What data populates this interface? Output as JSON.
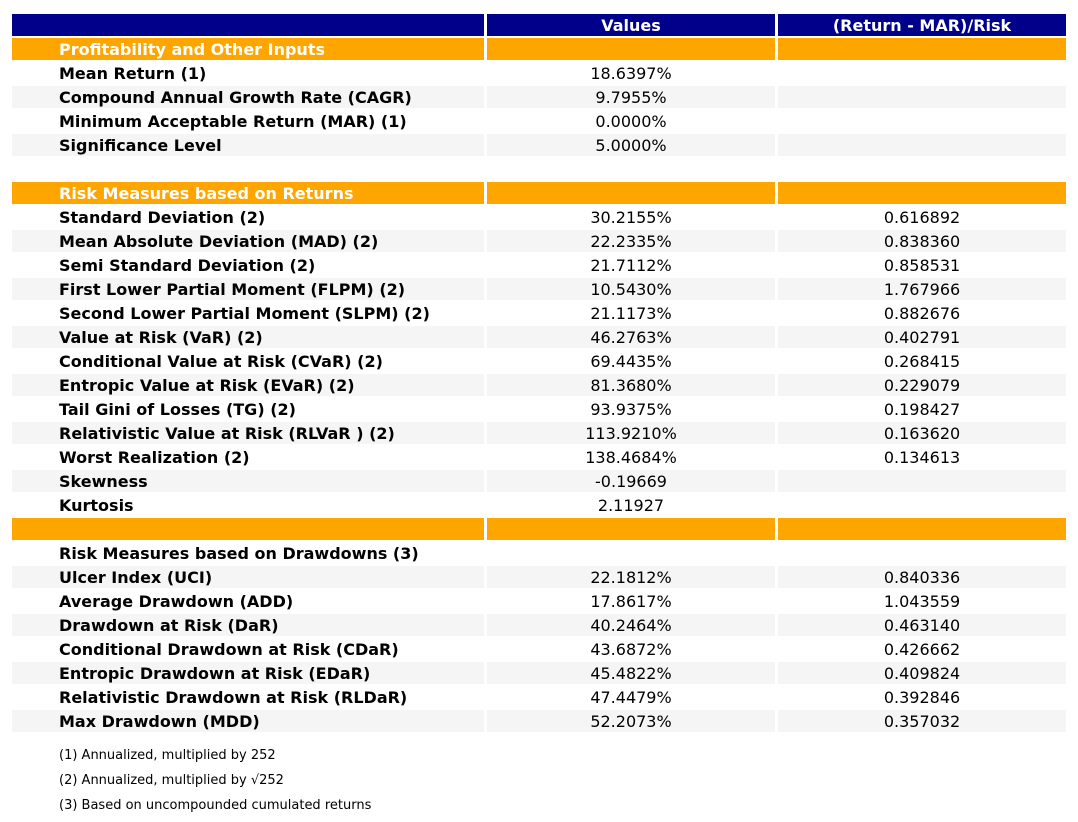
{
  "colors": {
    "header_bg": "#00008B",
    "header_text": "#FFFFFF",
    "section_bg": "#FFA500",
    "section_text": "#FFFFFF",
    "stripe_bg": "#F5F5F5",
    "body_text": "#000000"
  },
  "chart_data": {
    "type": "table",
    "columns": [
      "",
      "Values",
      "(Return - MAR)/Risk"
    ],
    "rows": [
      {
        "kind": "section",
        "label": "Profitability and Other Inputs",
        "value": "",
        "ratio": ""
      },
      {
        "kind": "data",
        "label": "Mean Return (1)",
        "value": "18.6397%",
        "ratio": ""
      },
      {
        "kind": "data",
        "label": "Compound Annual Growth Rate (CAGR)",
        "value": "9.7955%",
        "ratio": ""
      },
      {
        "kind": "data",
        "label": "Minimum Acceptable Return (MAR) (1)",
        "value": "0.0000%",
        "ratio": ""
      },
      {
        "kind": "data",
        "label": "Significance Level",
        "value": "5.0000%",
        "ratio": ""
      },
      {
        "kind": "spacer",
        "label": "",
        "value": "",
        "ratio": ""
      },
      {
        "kind": "section",
        "label": "Risk Measures based on Returns",
        "value": "",
        "ratio": ""
      },
      {
        "kind": "data",
        "label": "Standard Deviation (2)",
        "value": "30.2155%",
        "ratio": "0.616892"
      },
      {
        "kind": "data",
        "label": "Mean Absolute Deviation (MAD) (2)",
        "value": "22.2335%",
        "ratio": "0.838360"
      },
      {
        "kind": "data",
        "label": "Semi Standard Deviation (2)",
        "value": "21.7112%",
        "ratio": "0.858531"
      },
      {
        "kind": "data",
        "label": "First Lower Partial Moment (FLPM) (2)",
        "value": "10.5430%",
        "ratio": "1.767966"
      },
      {
        "kind": "data",
        "label": "Second Lower Partial Moment (SLPM) (2)",
        "value": "21.1173%",
        "ratio": "0.882676"
      },
      {
        "kind": "data",
        "label": "Value at Risk (VaR) (2)",
        "value": "46.2763%",
        "ratio": "0.402791"
      },
      {
        "kind": "data",
        "label": "Conditional Value at Risk (CVaR) (2)",
        "value": "69.4435%",
        "ratio": "0.268415"
      },
      {
        "kind": "data",
        "label": "Entropic Value at Risk (EVaR) (2)",
        "value": "81.3680%",
        "ratio": "0.229079"
      },
      {
        "kind": "data",
        "label": "Tail Gini of Losses (TG) (2)",
        "value": "93.9375%",
        "ratio": "0.198427"
      },
      {
        "kind": "data",
        "label": "Relativistic Value at Risk (RLVaR ) (2)",
        "value": "113.9210%",
        "ratio": "0.163620"
      },
      {
        "kind": "data",
        "label": "Worst Realization (2)",
        "value": "138.4684%",
        "ratio": "0.134613"
      },
      {
        "kind": "data",
        "label": "Skewness",
        "value": "-0.19669",
        "ratio": ""
      },
      {
        "kind": "data",
        "label": "Kurtosis",
        "value": "2.11927",
        "ratio": ""
      },
      {
        "kind": "section_empty",
        "label": "",
        "value": "",
        "ratio": ""
      },
      {
        "kind": "subsection",
        "label": "Risk Measures based on Drawdowns (3)",
        "value": "",
        "ratio": ""
      },
      {
        "kind": "data",
        "label": "Ulcer Index (UCI)",
        "value": "22.1812%",
        "ratio": "0.840336"
      },
      {
        "kind": "data",
        "label": "Average Drawdown (ADD)",
        "value": "17.8617%",
        "ratio": "1.043559"
      },
      {
        "kind": "data",
        "label": "Drawdown at Risk (DaR)",
        "value": "40.2464%",
        "ratio": "0.463140"
      },
      {
        "kind": "data",
        "label": "Conditional Drawdown at Risk (CDaR)",
        "value": "43.6872%",
        "ratio": "0.426662"
      },
      {
        "kind": "data",
        "label": "Entropic Drawdown at Risk (EDaR)",
        "value": "45.4822%",
        "ratio": "0.409824"
      },
      {
        "kind": "data",
        "label": "Relativistic Drawdown at Risk (RLDaR)",
        "value": "47.4479%",
        "ratio": "0.392846"
      },
      {
        "kind": "data",
        "label": "Max Drawdown (MDD)",
        "value": "52.2073%",
        "ratio": "0.357032"
      }
    ],
    "footnotes": [
      "(1) Annualized, multiplied by 252",
      "(2) Annualized, multiplied by √252",
      "(3) Based on uncompounded cumulated returns"
    ]
  }
}
